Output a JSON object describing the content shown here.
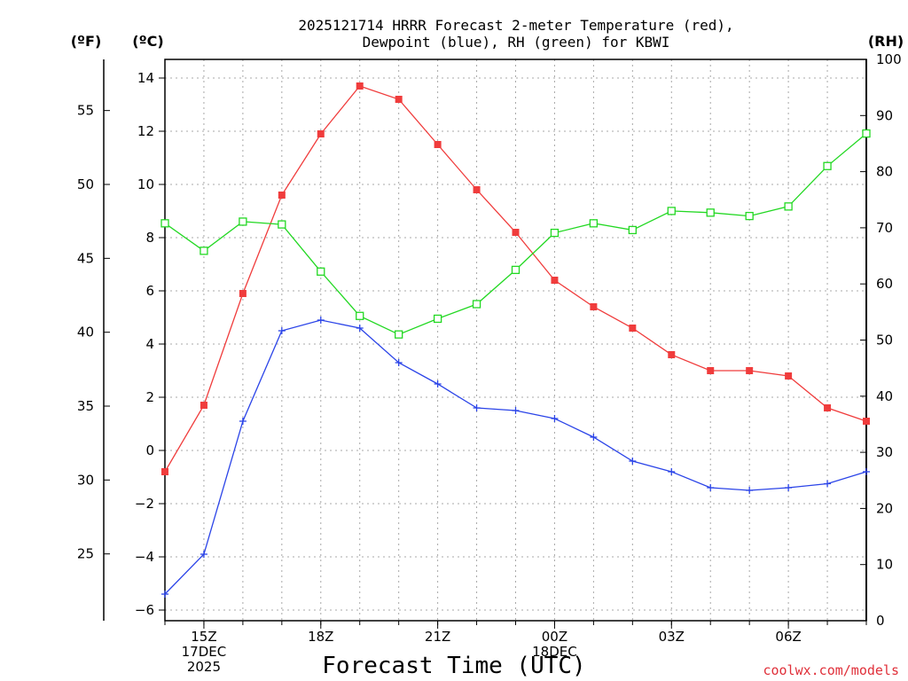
{
  "chart_data": {
    "type": "line",
    "title_lines": [
      "2025121714 HRRR Forecast 2-meter Temperature (red),",
      "Dewpoint (blue), RH (green) for KBWI"
    ],
    "xlabel": "Forecast Time (UTC)",
    "credit": "coolwx.com/models",
    "units": {
      "fahrenheit": "(ºF)",
      "celsius": "(ºC)",
      "rh": "(RH)"
    },
    "x_hours": [
      14,
      15,
      16,
      17,
      18,
      19,
      20,
      21,
      22,
      23,
      24,
      25,
      26,
      27,
      28,
      29,
      30,
      31,
      32
    ],
    "x_range": [
      14,
      32
    ],
    "x_ticks": [
      {
        "hour": 15,
        "labels": [
          "15Z",
          "17DEC",
          "2025"
        ]
      },
      {
        "hour": 18,
        "labels": [
          "18Z"
        ]
      },
      {
        "hour": 21,
        "labels": [
          "21Z"
        ]
      },
      {
        "hour": 24,
        "labels": [
          "00Z",
          "18DEC"
        ]
      },
      {
        "hour": 27,
        "labels": [
          "03Z"
        ]
      },
      {
        "hour": 30,
        "labels": [
          "06Z"
        ]
      }
    ],
    "left_axis_c": {
      "range": [
        -6.4,
        14.7
      ],
      "ticks": [
        "14",
        "12",
        "10",
        "8",
        "6",
        "4",
        "2",
        "0",
        "−2",
        "−4",
        "−6"
      ],
      "values": [
        14,
        12,
        10,
        8,
        6,
        4,
        2,
        0,
        -2,
        -4,
        -6
      ]
    },
    "left_axis_f": {
      "ticks": [
        "55",
        "50",
        "45",
        "40",
        "35",
        "30",
        "25"
      ],
      "values": [
        55,
        50,
        45,
        40,
        35,
        30,
        25
      ]
    },
    "right_axis_rh": {
      "range": [
        0,
        100
      ],
      "ticks": [
        "100",
        "90",
        "80",
        "70",
        "60",
        "50",
        "40",
        "30",
        "20",
        "10",
        "0"
      ],
      "values": [
        100,
        90,
        80,
        70,
        60,
        50,
        40,
        30,
        20,
        10,
        0
      ]
    },
    "series": [
      {
        "name": "Temperature",
        "axis": "celsius",
        "color": "#f03c3c",
        "marker": "filled-square",
        "values": [
          -0.8,
          1.7,
          5.9,
          9.6,
          11.9,
          13.7,
          13.2,
          11.5,
          9.8,
          8.2,
          6.4,
          5.4,
          4.6,
          3.6,
          3.0,
          3.0,
          2.8,
          1.6,
          1.1
        ]
      },
      {
        "name": "Dewpoint",
        "axis": "celsius",
        "color": "#2b44e8",
        "marker": "plus",
        "values": [
          -5.4,
          -3.9,
          1.1,
          4.5,
          4.9,
          4.6,
          3.3,
          2.5,
          1.6,
          1.5,
          1.2,
          0.5,
          -0.4,
          -0.8,
          -1.4,
          -1.5,
          -1.4,
          -1.25,
          -0.8
        ]
      },
      {
        "name": "RH",
        "axis": "rh",
        "color": "#22d822",
        "marker": "open-square",
        "values": [
          70.8,
          65.9,
          71.1,
          70.6,
          62.2,
          54.3,
          51.0,
          53.8,
          56.4,
          62.5,
          69.1,
          70.8,
          69.6,
          73.0,
          72.7,
          72.1,
          73.8,
          81.0,
          86.8
        ]
      }
    ]
  }
}
